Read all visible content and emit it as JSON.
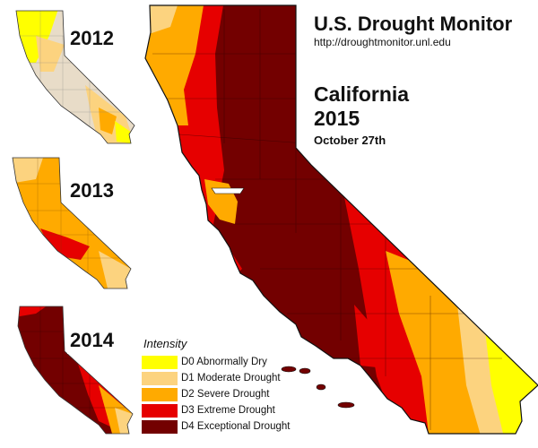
{
  "header": {
    "title": "U.S. Drought Monitor",
    "url": "http://droughtmonitor.unl.edu"
  },
  "main": {
    "state": "California",
    "year": "2015",
    "date": "October 27th"
  },
  "insets": [
    {
      "year": "2012"
    },
    {
      "year": "2013"
    },
    {
      "year": "2014"
    }
  ],
  "legend": {
    "title": "Intensity",
    "items": [
      {
        "code": "D0",
        "label": "D0 Abnormally Dry",
        "color": "#ffff00"
      },
      {
        "code": "D1",
        "label": "D1 Moderate Drought",
        "color": "#fcd37f"
      },
      {
        "code": "D2",
        "label": "D2 Severe Drought",
        "color": "#ffaa00"
      },
      {
        "code": "D3",
        "label": "D3 Extreme Drought",
        "color": "#e60000"
      },
      {
        "code": "D4",
        "label": "D4 Exceptional Drought",
        "color": "#730000"
      }
    ]
  }
}
